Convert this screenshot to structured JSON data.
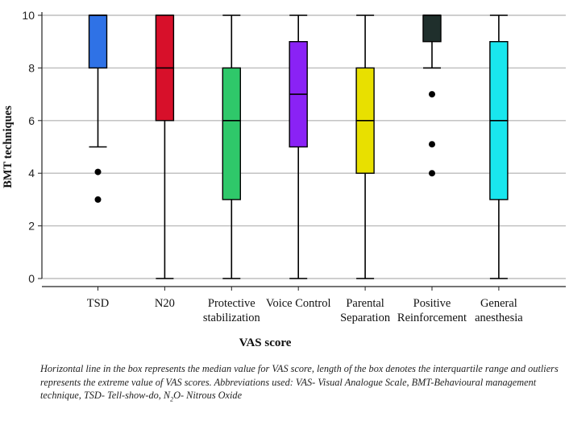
{
  "chart_data": {
    "type": "boxplot",
    "title": "",
    "xlabel": "VAS score",
    "ylabel": "BMT techniques",
    "ylim": [
      0,
      10
    ],
    "yticks": [
      0,
      2,
      4,
      6,
      8,
      10
    ],
    "grid": true,
    "categories": [
      {
        "label": [
          "TSD"
        ],
        "color": "#2f72e6",
        "whisker_low": 5,
        "q1": 8,
        "median": 10,
        "q3": 10,
        "whisker_high": 10,
        "outliers": [
          4.05,
          3
        ]
      },
      {
        "label": [
          "N20"
        ],
        "color": "#d7102a",
        "whisker_low": 0,
        "q1": 6,
        "median": 8,
        "q3": 10,
        "whisker_high": 10,
        "outliers": []
      },
      {
        "label": [
          "Protective",
          "stabilization"
        ],
        "color": "#2fc86a",
        "whisker_low": 0,
        "q1": 3,
        "median": 6,
        "q3": 8,
        "whisker_high": 10,
        "outliers": []
      },
      {
        "label": [
          "Voice Control"
        ],
        "color": "#8a22f5",
        "whisker_low": 0,
        "q1": 5,
        "median": 7,
        "q3": 9,
        "whisker_high": 10,
        "outliers": []
      },
      {
        "label": [
          "Parental",
          "Separation"
        ],
        "color": "#e8e000",
        "whisker_low": 0,
        "q1": 4,
        "median": 6,
        "q3": 8,
        "whisker_high": 10,
        "outliers": []
      },
      {
        "label": [
          "Positive",
          "Reinforcement"
        ],
        "color": "#1f2f2c",
        "whisker_low": 8,
        "q1": 9,
        "median": 10,
        "q3": 10,
        "whisker_high": 10,
        "outliers": [
          7,
          5.1,
          4
        ]
      },
      {
        "label": [
          "General",
          "anesthesia"
        ],
        "color": "#19e6ee",
        "whisker_low": 0,
        "q1": 3,
        "median": 6,
        "q3": 9,
        "whisker_high": 10,
        "outliers": []
      }
    ]
  },
  "caption": {
    "part1": "Horizontal line in the box represents the median value for VAS score, length of the box denotes the interquartile range and outliers represents the extreme value of VAS scores. Abbreviations used: VAS- Visual Analogue Scale, BMT-Behavioural management technique, TSD- Tell-show-do, N",
    "sub": "2",
    "part2": "O- Nitrous Oxide"
  }
}
